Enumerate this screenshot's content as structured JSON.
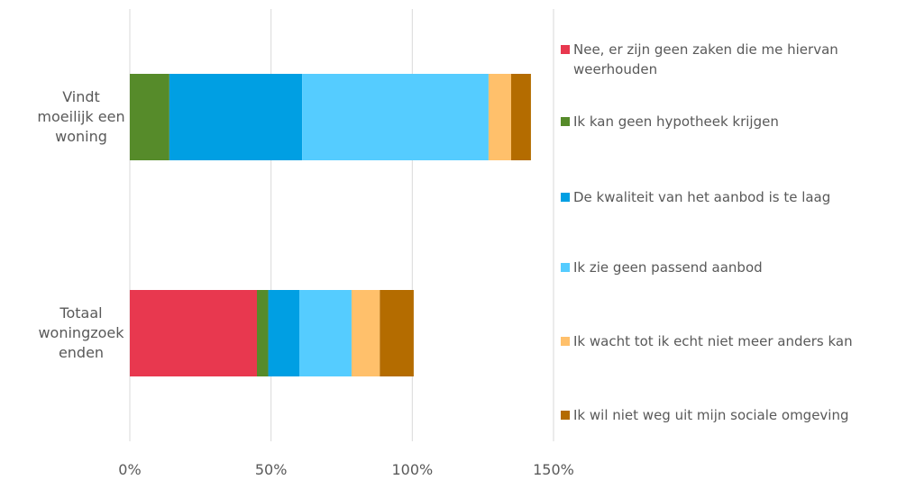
{
  "chart_data": {
    "type": "stacked-barh",
    "categories": [
      "Vindt moeilijk een woning",
      "Totaal woningzoekenden"
    ],
    "series": [
      {
        "name": "Nee, er zijn geen zaken die me hiervan weerhouden",
        "color": "#e8384f",
        "values": [
          0,
          45
        ]
      },
      {
        "name": "Ik kan geen hypotheek krijgen",
        "color": "#568b2a",
        "values": [
          14,
          4
        ]
      },
      {
        "name": "De kwaliteit van het aanbod is te laag",
        "color": "#009fe3",
        "values": [
          47,
          11
        ]
      },
      {
        "name": "Ik zie geen passend aanbod",
        "color": "#55ccff",
        "values": [
          66,
          18.5
        ]
      },
      {
        "name": "Ik wacht tot ik echt niet meer anders kan",
        "color": "#ffc06b",
        "values": [
          8,
          10
        ]
      },
      {
        "name": "Ik wil niet weg uit mijn sociale omgeving",
        "color": "#b46c00",
        "values": [
          7,
          12
        ]
      }
    ],
    "xlim": [
      0,
      150
    ],
    "xticks": [
      {
        "value": 0,
        "label": "0%"
      },
      {
        "value": 50,
        "label": "50%"
      },
      {
        "value": 100,
        "label": "100%"
      },
      {
        "value": 150,
        "label": "150%"
      }
    ],
    "grid": true,
    "legend": "right"
  }
}
